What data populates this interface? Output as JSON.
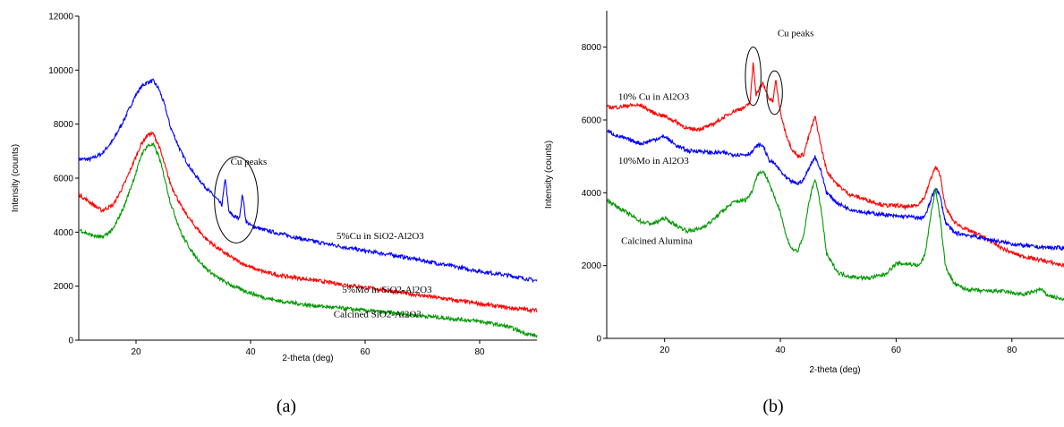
{
  "chart_data": [
    {
      "type": "line",
      "panel_label": "(a)",
      "xlabel": "2-theta (deg)",
      "ylabel": "Intensity (counts)",
      "xlim": [
        10,
        90
      ],
      "ylim": [
        0,
        12000
      ],
      "xticks": [
        20,
        40,
        60,
        80
      ],
      "yticks": [
        0,
        2000,
        4000,
        6000,
        8000,
        10000,
        12000
      ],
      "grid": false,
      "series": [
        {
          "label": "5%Cu in SiO2-Al2O3",
          "color": "#0000ff",
          "x": [
            10,
            12,
            14,
            16,
            18,
            20,
            21,
            22,
            23,
            24,
            25,
            26,
            28,
            30,
            32,
            34,
            35,
            35.6,
            36.2,
            37,
            38,
            38.6,
            39.2,
            40,
            42,
            45,
            48,
            50,
            55,
            60,
            65,
            70,
            75,
            80,
            85,
            90
          ],
          "y": [
            6700,
            6700,
            6900,
            7400,
            8200,
            9100,
            9400,
            9550,
            9600,
            9300,
            8700,
            7900,
            6900,
            6200,
            5700,
            5250,
            5000,
            6000,
            4750,
            4600,
            4500,
            5400,
            4400,
            4250,
            4100,
            3950,
            3800,
            3700,
            3500,
            3300,
            3150,
            2950,
            2750,
            2550,
            2400,
            2200
          ]
        },
        {
          "label": "5%Mo in SiO2-Al2O3",
          "color": "#ff0000",
          "x": [
            10,
            12,
            14,
            16,
            18,
            20,
            21,
            22,
            23,
            24,
            25,
            26,
            28,
            30,
            32,
            34,
            36,
            38,
            40,
            42,
            45,
            50,
            55,
            60,
            65,
            70,
            75,
            80,
            85,
            90
          ],
          "y": [
            5400,
            5100,
            4800,
            5000,
            5800,
            6800,
            7300,
            7600,
            7650,
            7200,
            6500,
            5800,
            4900,
            4300,
            3800,
            3450,
            3150,
            2900,
            2700,
            2550,
            2400,
            2250,
            2100,
            1950,
            1800,
            1650,
            1500,
            1350,
            1200,
            1100
          ]
        },
        {
          "label": "Calcined SiO2-Al2O3",
          "color": "#009900",
          "x": [
            10,
            12,
            14,
            16,
            18,
            20,
            21,
            22,
            23,
            24,
            25,
            26,
            28,
            30,
            32,
            34,
            36,
            38,
            40,
            42,
            45,
            50,
            55,
            60,
            65,
            70,
            75,
            80,
            85,
            88,
            90
          ],
          "y": [
            4100,
            3900,
            3800,
            4100,
            5000,
            6200,
            6900,
            7200,
            7250,
            6800,
            6000,
            5100,
            3900,
            3200,
            2700,
            2350,
            2100,
            1900,
            1750,
            1600,
            1450,
            1300,
            1200,
            1100,
            1000,
            900,
            800,
            700,
            500,
            250,
            150
          ]
        }
      ],
      "annotations": [
        {
          "text": "Cu peaks",
          "x": 36.5,
          "y": 6500
        },
        {
          "text": "5%Cu in SiO2-Al2O3",
          "x": 55,
          "y": 3750
        },
        {
          "text": "5%Mo in SiO2-Al2O3",
          "x": 56,
          "y": 1750
        },
        {
          "text": "Calcined SiO2-Al2O3",
          "x": 54.5,
          "y": 850
        }
      ],
      "circles": [
        {
          "cx": 37.5,
          "cy": 5200,
          "rx": 3.8,
          "ry": 1600
        }
      ]
    },
    {
      "type": "line",
      "panel_label": "(b)",
      "xlabel": "2-theta (deg)",
      "ylabel": "Intensity (counts)",
      "xlim": [
        10,
        89
      ],
      "ylim": [
        0,
        9000
      ],
      "xticks": [
        20,
        40,
        60,
        80
      ],
      "yticks": [
        0,
        2000,
        4000,
        6000,
        8000
      ],
      "grid": false,
      "series": [
        {
          "label": "10% Cu in Al2O3",
          "color": "#ff0000",
          "x": [
            10,
            12,
            14,
            16,
            18,
            20,
            22,
            24,
            26,
            28,
            30,
            32,
            33,
            34,
            34.8,
            35.3,
            35.8,
            36.5,
            37,
            38,
            38.7,
            39.2,
            40,
            41,
            42,
            43,
            44,
            45,
            46,
            47,
            48,
            50,
            52,
            55,
            58,
            60,
            62,
            64,
            65,
            66,
            66.8,
            67.6,
            68.5,
            70,
            72,
            75,
            78,
            80,
            82,
            85,
            89
          ],
          "y": [
            6350,
            6350,
            6400,
            6400,
            6200,
            6100,
            5950,
            5750,
            5750,
            5850,
            6050,
            6250,
            6300,
            6350,
            6500,
            7600,
            6700,
            6900,
            7000,
            6600,
            6500,
            7100,
            6200,
            5600,
            5200,
            5000,
            5050,
            5600,
            6100,
            5300,
            4600,
            4200,
            3950,
            3800,
            3650,
            3650,
            3600,
            3700,
            3900,
            4400,
            4700,
            4500,
            3600,
            3200,
            3000,
            2800,
            2500,
            2350,
            2250,
            2150,
            2000
          ]
        },
        {
          "label": "10%Mo in Al2O3",
          "color": "#0000ff",
          "x": [
            10,
            12,
            14,
            16,
            18,
            20,
            22,
            24,
            26,
            28,
            30,
            32,
            34,
            35,
            36,
            37,
            38,
            39,
            40,
            41,
            42,
            43,
            44,
            45,
            46,
            47,
            48,
            50,
            52,
            55,
            58,
            60,
            62,
            64,
            65,
            66,
            66.8,
            67.6,
            68.5,
            70,
            72,
            75,
            78,
            80,
            82,
            85,
            89
          ],
          "y": [
            5700,
            5550,
            5450,
            5350,
            5450,
            5550,
            5300,
            5150,
            5150,
            5100,
            5100,
            5050,
            5050,
            5100,
            5300,
            5300,
            4900,
            4800,
            4600,
            4400,
            4300,
            4250,
            4350,
            4700,
            5000,
            4600,
            4000,
            3700,
            3550,
            3450,
            3400,
            3350,
            3350,
            3300,
            3350,
            3800,
            4150,
            3900,
            3200,
            2900,
            2850,
            2750,
            2650,
            2600,
            2550,
            2500,
            2480
          ]
        },
        {
          "label": "Calcined Alumina",
          "color": "#009900",
          "x": [
            10,
            12,
            14,
            16,
            18,
            20,
            22,
            24,
            26,
            28,
            30,
            32,
            34,
            35,
            36,
            37,
            38,
            39,
            40,
            41,
            42,
            43,
            44,
            45,
            46,
            47,
            48,
            50,
            52,
            55,
            58,
            60,
            62,
            64,
            65,
            66,
            66.8,
            67.6,
            68.5,
            70,
            72,
            75,
            78,
            80,
            82,
            84,
            85,
            86,
            89
          ],
          "y": [
            3800,
            3600,
            3400,
            3200,
            3150,
            3300,
            3100,
            2950,
            3000,
            3200,
            3500,
            3750,
            3800,
            4000,
            4500,
            4600,
            4300,
            3850,
            3500,
            2800,
            2450,
            2400,
            2800,
            3800,
            4400,
            3600,
            2300,
            1800,
            1700,
            1650,
            1750,
            2050,
            2050,
            2000,
            2300,
            3400,
            4100,
            3300,
            2000,
            1500,
            1350,
            1300,
            1300,
            1250,
            1200,
            1300,
            1350,
            1200,
            1050
          ]
        }
      ],
      "annotations": [
        {
          "text": "Cu peaks",
          "x": 39.5,
          "y": 8300
        },
        {
          "text": "10% Cu in Al2O3",
          "x": 12,
          "y": 6550
        },
        {
          "text": "10%Mo in Al2O3",
          "x": 12,
          "y": 4800
        },
        {
          "text": "Calcined Alumina",
          "x": 12.5,
          "y": 2600
        }
      ],
      "circles": [
        {
          "cx": 35.3,
          "cy": 7200,
          "rx": 1.35,
          "ry": 800
        },
        {
          "cx": 39.0,
          "cy": 6750,
          "rx": 1.35,
          "ry": 600
        }
      ]
    }
  ]
}
